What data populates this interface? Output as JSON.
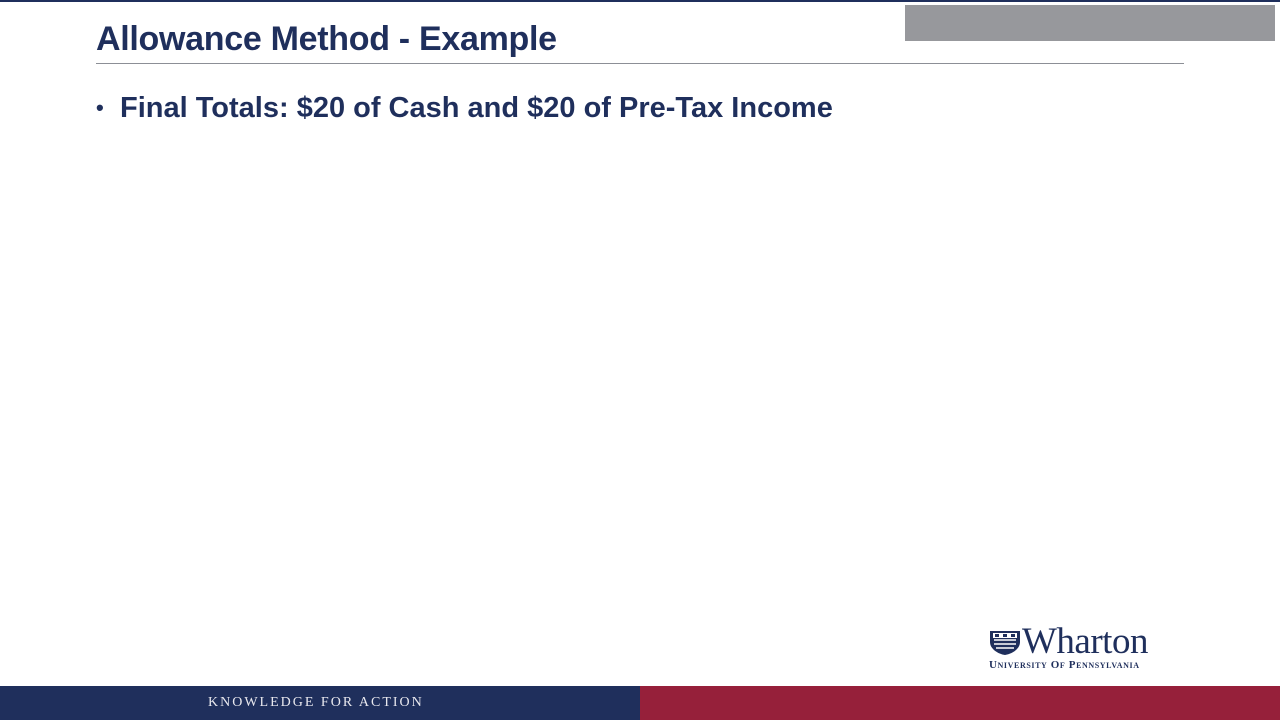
{
  "slide": {
    "title": "Allowance Method - Example",
    "bullets": [
      {
        "text": "Final Totals: $20 of Cash and $20 of Pre-Tax Income"
      }
    ]
  },
  "logo": {
    "wordmark": "Wharton",
    "subtitle": "University of Pennsylvania",
    "icon": "penn-shield-icon"
  },
  "footer": {
    "tagline": "KNOWLEDGE FOR ACTION"
  },
  "colors": {
    "navy": "#1f2f5c",
    "crimson": "#96203a",
    "gray_box": "#97989c",
    "rule": "#8c8f96"
  }
}
